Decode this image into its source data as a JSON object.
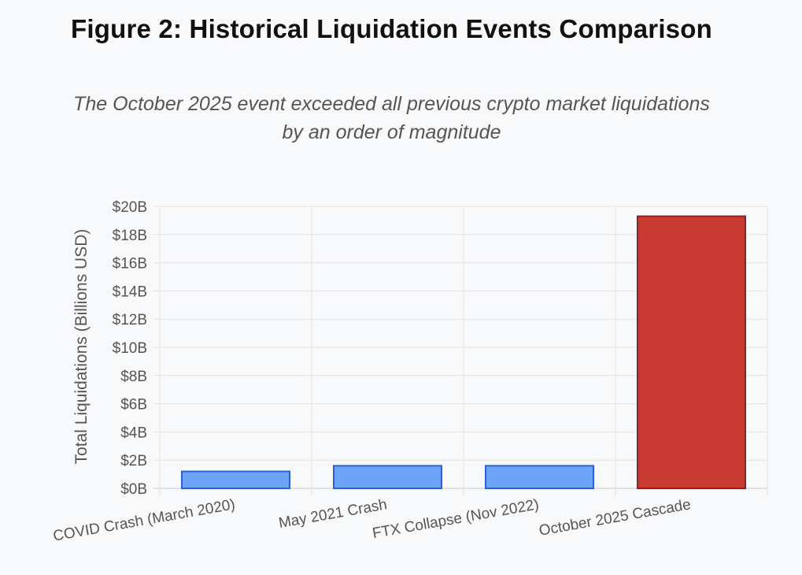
{
  "header": {
    "title": "Figure 2: Historical Liquidation Events Comparison",
    "subtitle_line1": "The October 2025 event exceeded all previous crypto market liquidations",
    "subtitle_line2": "by an order of magnitude"
  },
  "colors": {
    "blue_fill": "#6fa3f7",
    "blue_border": "#2f5fd6",
    "red_fill": "#c83a32",
    "red_border": "#8a2420",
    "grid": "#e3e3e3",
    "text": "#555555"
  },
  "chart_data": {
    "type": "bar",
    "title": "Figure 2: Historical Liquidation Events Comparison",
    "subtitle": "The October 2025 event exceeded all previous crypto market liquidations by an order of magnitude",
    "xlabel": "",
    "ylabel": "Total Liquidations (Billions USD)",
    "categories": [
      "COVID Crash (March 2020)",
      "May 2021 Crash",
      "FTX Collapse (Nov 2022)",
      "October 2025 Cascade"
    ],
    "values": [
      1.2,
      1.6,
      1.6,
      19.3
    ],
    "bar_colors": [
      "#6fa3f7",
      "#6fa3f7",
      "#6fa3f7",
      "#c83a32"
    ],
    "ylim": [
      0,
      20
    ],
    "yticks": [
      0,
      2,
      4,
      6,
      8,
      10,
      12,
      14,
      16,
      18,
      20
    ],
    "ytick_labels": [
      "$0B",
      "$2B",
      "$4B",
      "$6B",
      "$8B",
      "$10B",
      "$12B",
      "$14B",
      "$16B",
      "$18B",
      "$20B"
    ],
    "grid": true,
    "legend": "none"
  }
}
